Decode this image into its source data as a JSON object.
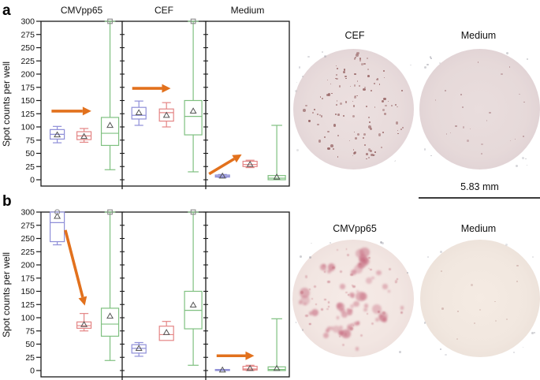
{
  "figure": {
    "panel_a_label": "a",
    "panel_b_label": "b"
  },
  "colors": {
    "series_blue": "#8f8fd8",
    "series_red": "#e48585",
    "series_green": "#7fc080",
    "arrow": "#e2711d",
    "axis": "#1a1a1a",
    "marker_mean": "#555555",
    "marker_flier": "#888888",
    "text": "#111111"
  },
  "chart_data": [
    {
      "type": "boxplot",
      "panel": "a",
      "ylabel": "Spot counts per well",
      "ylim": [
        0,
        300
      ],
      "yticks": [
        0,
        25,
        50,
        75,
        100,
        125,
        150,
        175,
        200,
        225,
        250,
        275,
        300
      ],
      "show_group_titles": true,
      "groups": [
        {
          "label": "CMVpp65",
          "boxes": [
            {
              "series": "blue",
              "whislo": 70,
              "q1": 77,
              "med": 86,
              "q3": 95,
              "whishi": 101,
              "mean": 85,
              "fliers": []
            },
            {
              "series": "red",
              "whislo": 71,
              "q1": 76,
              "med": 83,
              "q3": 91,
              "whishi": 97,
              "mean": 82,
              "fliers": []
            },
            {
              "series": "green",
              "whislo": 19,
              "q1": 65,
              "med": 88,
              "q3": 118,
              "whishi": 300,
              "mean": 103,
              "fliers": [
                {
                  "shape": "square",
                  "value": 300
                }
              ]
            }
          ],
          "arrow": {
            "x1": 0.13,
            "y1": 130,
            "x2": 0.62,
            "y2": 130
          }
        },
        {
          "label": "CEF",
          "boxes": [
            {
              "series": "blue",
              "whislo": 103,
              "q1": 115,
              "med": 122,
              "q3": 137,
              "whishi": 149,
              "mean": 127,
              "fliers": []
            },
            {
              "series": "red",
              "whislo": 100,
              "q1": 111,
              "med": 127,
              "q3": 134,
              "whishi": 146,
              "mean": 122,
              "fliers": []
            },
            {
              "series": "green",
              "whislo": 15,
              "q1": 85,
              "med": 120,
              "q3": 150,
              "whishi": 300,
              "mean": 130,
              "fliers": [
                {
                  "shape": "square",
                  "value": 300
                }
              ]
            }
          ],
          "arrow": {
            "x1": 0.12,
            "y1": 173,
            "x2": 0.58,
            "y2": 173
          }
        },
        {
          "label": "Medium",
          "boxes": [
            {
              "series": "blue",
              "whislo": 4,
              "q1": 5,
              "med": 7,
              "q3": 9,
              "whishi": 10,
              "mean": 7,
              "fliers": []
            },
            {
              "series": "red",
              "whislo": 23,
              "q1": 25,
              "med": 29,
              "q3": 35,
              "whishi": 37,
              "mean": 29,
              "fliers": []
            },
            {
              "series": "green",
              "whislo": 0,
              "q1": 0,
              "med": 3,
              "q3": 8,
              "whishi": 103,
              "mean": 5,
              "fliers": []
            }
          ],
          "arrow": {
            "x1": 0.04,
            "y1": 11,
            "x2": 0.43,
            "y2": 48
          }
        }
      ]
    },
    {
      "type": "boxplot",
      "panel": "b",
      "ylabel": "Spot counts per well",
      "ylim": [
        0,
        300
      ],
      "yticks": [
        0,
        25,
        50,
        75,
        100,
        125,
        150,
        175,
        200,
        225,
        250,
        275,
        300
      ],
      "show_group_titles": false,
      "groups": [
        {
          "label": "CMVpp65",
          "boxes": [
            {
              "series": "blue",
              "whislo": 238,
              "q1": 244,
              "med": 280,
              "q3": 300,
              "whishi": 300,
              "mean": 292,
              "fliers": [
                {
                  "shape": "circle",
                  "value": 300
                }
              ]
            },
            {
              "series": "red",
              "whislo": 75,
              "q1": 80,
              "med": 85,
              "q3": 92,
              "whishi": 108,
              "mean": 87,
              "fliers": []
            },
            {
              "series": "green",
              "whislo": 19,
              "q1": 65,
              "med": 88,
              "q3": 118,
              "whishi": 300,
              "mean": 103,
              "fliers": [
                {
                  "shape": "square",
                  "value": 300
                }
              ]
            }
          ],
          "arrow": {
            "x1": 0.3,
            "y1": 266,
            "x2": 0.54,
            "y2": 123
          }
        },
        {
          "label": "CEF",
          "boxes": [
            {
              "series": "blue",
              "whislo": 27,
              "q1": 33,
              "med": 42,
              "q3": 49,
              "whishi": 53,
              "mean": 42,
              "fliers": []
            },
            {
              "series": "red",
              "whislo": 57,
              "q1": 57,
              "med": 68,
              "q3": 84,
              "whishi": 93,
              "mean": 72,
              "fliers": []
            },
            {
              "series": "green",
              "whislo": 10,
              "q1": 79,
              "med": 114,
              "q3": 150,
              "whishi": 300,
              "mean": 124,
              "fliers": [
                {
                  "shape": "square",
                  "value": 300
                }
              ]
            }
          ]
        },
        {
          "label": "Medium",
          "boxes": [
            {
              "series": "blue",
              "whislo": 0,
              "q1": 0,
              "med": 1,
              "q3": 2,
              "whishi": 2,
              "mean": 1,
              "fliers": []
            },
            {
              "series": "red",
              "whislo": 0,
              "q1": 1,
              "med": 3,
              "q3": 8,
              "whishi": 10,
              "mean": 4,
              "fliers": []
            },
            {
              "series": "green",
              "whislo": 0,
              "q1": 0,
              "med": 2,
              "q3": 7,
              "whishi": 98,
              "mean": 4,
              "fliers": []
            }
          ],
          "arrow": {
            "x1": 0.13,
            "y1": 28,
            "x2": 0.58,
            "y2": 28
          }
        }
      ]
    }
  ],
  "wells": {
    "rows": [
      {
        "items": [
          {
            "label": "CEF",
            "spot_profile": "many-small"
          },
          {
            "label": "Medium",
            "spot_profile": "few-small"
          }
        ]
      },
      {
        "items": [
          {
            "label": "CMVpp65",
            "spot_profile": "many-large"
          },
          {
            "label": "Medium",
            "spot_profile": "few-faint"
          }
        ]
      }
    ],
    "scale_bar_label": "5.83 mm"
  }
}
